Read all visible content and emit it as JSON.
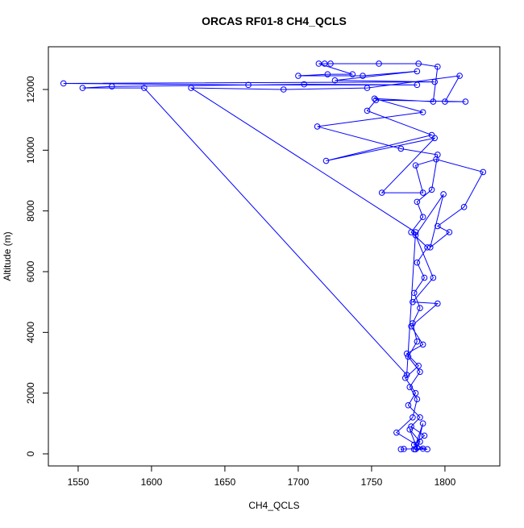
{
  "chart_data": {
    "type": "line",
    "title": "ORCAS RF01-8 CH4_QCLS",
    "x_label": "CH4_QCLS",
    "y_label": "Altitude (m)",
    "x": [
      1770,
      1772,
      1785,
      1767,
      1778,
      1781,
      1776,
      1783,
      1775,
      1781,
      1778,
      1783,
      1779,
      1786,
      1781,
      1788,
      1777,
      1785,
      1781,
      1791,
      1795,
      1770,
      1713,
      1785,
      1752,
      1792,
      1795,
      1782,
      1755,
      1722,
      1718,
      1714,
      1737,
      1720,
      1700,
      1744,
      1781,
      1725,
      1793,
      1540,
      1666,
      1781,
      1704,
      1573,
      1553,
      1595,
      1774,
      1780,
      1627,
      1690,
      1747,
      1810,
      1800,
      1814,
      1753,
      1747,
      1791,
      1719,
      1793,
      1757,
      1785,
      1780,
      1794,
      1826,
      1813,
      1795,
      1803,
      1790,
      1799,
      1780,
      1792,
      1778,
      1795,
      1777,
      1785,
      1774,
      1782,
      1773,
      1780,
      1775,
      1783,
      1777,
      1786,
      1779,
      1788,
      1780,
      1783,
      1776,
      1781,
      1785,
      1779
    ],
    "series": [
      {
        "name": "CH4_QCLS",
        "color": "#0000ff",
        "values": [
          150,
          160,
          170,
          700,
          1200,
          1800,
          2200,
          2700,
          3200,
          3700,
          4300,
          4800,
          5300,
          5800,
          6300,
          6800,
          7300,
          7800,
          8300,
          8700,
          9850,
          10050,
          10780,
          11250,
          11700,
          11600,
          12750,
          12850,
          12850,
          12850,
          12850,
          12850,
          12500,
          12500,
          12450,
          12450,
          12600,
          12300,
          12250,
          12200,
          12150,
          12150,
          12170,
          12100,
          12050,
          12050,
          2600,
          7300,
          12050,
          12000,
          12050,
          12450,
          11600,
          11600,
          11650,
          11300,
          10500,
          9650,
          10400,
          8600,
          8600,
          9500,
          9700,
          9280,
          8130,
          7500,
          7300,
          6800,
          8550,
          7200,
          5800,
          5000,
          4950,
          4200,
          3600,
          3300,
          2900,
          2500,
          2000,
          1600,
          1200,
          900,
          600,
          300,
          150,
          150,
          400,
          800,
          200,
          1000,
          150
        ]
      }
    ],
    "xlim": [
      1529.7,
      1837.4
    ],
    "ylim": [
      -398,
      13407
    ],
    "xticks": [
      1550,
      1600,
      1650,
      1700,
      1750,
      1800
    ],
    "yticks": [
      0,
      2000,
      4000,
      6000,
      8000,
      10000,
      12000
    ],
    "grid": false
  }
}
